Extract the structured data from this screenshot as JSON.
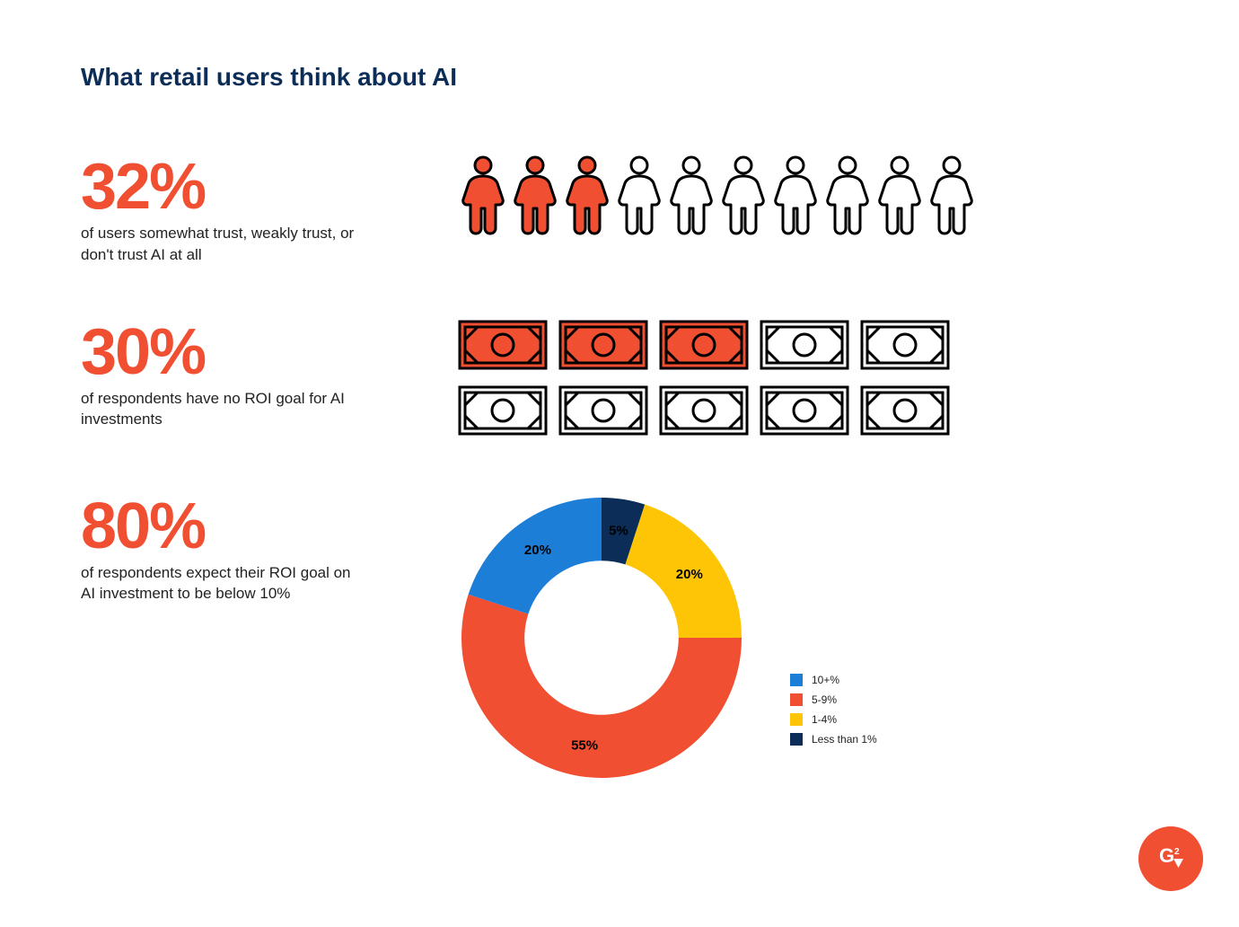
{
  "title": "What retail users think about AI",
  "colors": {
    "accent": "#f04f32",
    "title": "#0b2d57",
    "blue": "#1d7ed8",
    "yellow": "#fec506",
    "navy": "#0b2d57",
    "outline": "#000000",
    "bg": "#ffffff"
  },
  "stat1": {
    "value": "32%",
    "text": "of users somewhat trust, weakly trust, or don't trust AI at all",
    "icons": {
      "total": 10,
      "filled": 3,
      "filled_color": "#f04f32",
      "empty_color": "#ffffff",
      "stroke": "#000000"
    }
  },
  "stat2": {
    "value": "30%",
    "text": "of respondents have no ROI goal for AI investments",
    "icons": {
      "total": 10,
      "filled": 3,
      "filled_color": "#f04f32",
      "empty_color": "#ffffff",
      "stroke": "#000000"
    }
  },
  "stat3": {
    "value": "80%",
    "text": "of respondents expect their ROI goal on AI investment to be below 10%",
    "donut": {
      "size": 320,
      "inner_ratio": 0.55,
      "slices": [
        {
          "label": "5%",
          "value": 5,
          "color": "#0b2d57",
          "legend": "Less than 1%"
        },
        {
          "label": "20%",
          "value": 20,
          "color": "#fec506",
          "legend": "1-4%"
        },
        {
          "label": "55%",
          "value": 55,
          "color": "#f04f32",
          "legend": "5-9%"
        },
        {
          "label": "20%",
          "value": 20,
          "color": "#1d7ed8",
          "legend": "10+%"
        }
      ],
      "legend_order": [
        "10+%",
        "5-9%",
        "1-4%",
        "Less than 1%"
      ],
      "legend_colors": {
        "10+%": "#1d7ed8",
        "5-9%": "#f04f32",
        "1-4%": "#fec506",
        "Less than 1%": "#0b2d57"
      }
    }
  },
  "logo": {
    "label": "G2",
    "bg": "#f04f32",
    "fg": "#ffffff"
  }
}
